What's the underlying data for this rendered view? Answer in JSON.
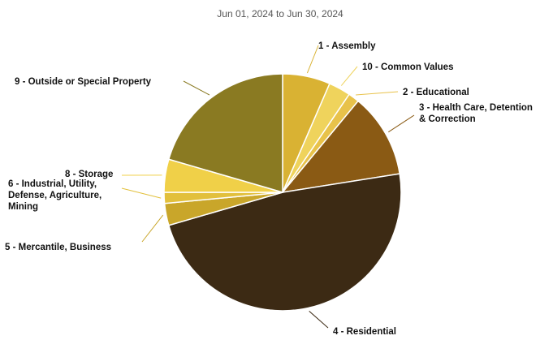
{
  "chart_data": {
    "type": "pie",
    "title": "",
    "subtitle": "Jun 01, 2024 to Jun 30, 2024",
    "slices": [
      {
        "label": "1 - Assembly",
        "value": 6.5,
        "color": "#d9b233"
      },
      {
        "label": "10 - Common Values",
        "value": 3.0,
        "color": "#efd35c"
      },
      {
        "label": "2 - Educational",
        "value": 1.5,
        "color": "#e8c24a"
      },
      {
        "label": "3 - Health Care, Detention & Correction",
        "value": 11.5,
        "color": "#8a5a14"
      },
      {
        "label": "4 - Residential",
        "value": 48.0,
        "color": "#3c2a14"
      },
      {
        "label": "5 - Mercantile, Business",
        "value": 3.0,
        "color": "#c9a62a"
      },
      {
        "label": "6 - Industrial, Utility, Defense, Agriculture, Mining",
        "value": 1.5,
        "color": "#e2c03c"
      },
      {
        "label": "8 - Storage",
        "value": 4.5,
        "color": "#f0d048"
      },
      {
        "label": "9 - Outside or Special Property",
        "value": 20.5,
        "color": "#8a7a22"
      }
    ]
  }
}
